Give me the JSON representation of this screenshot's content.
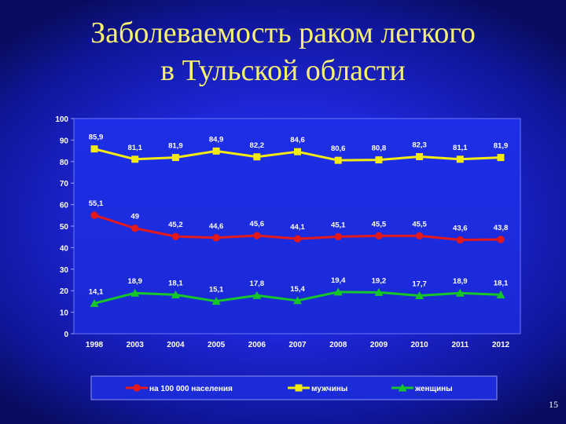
{
  "slide": {
    "title_line1": "Заболеваемость раком легкого",
    "title_line2": "в Тульской области",
    "page_number": "15"
  },
  "chart_data": {
    "type": "line",
    "categories": [
      "1998",
      "2003",
      "2004",
      "2005",
      "2006",
      "2007",
      "2008",
      "2009",
      "2010",
      "2011",
      "2012"
    ],
    "ylim": [
      0,
      100
    ],
    "yticks": [
      0,
      10,
      20,
      30,
      40,
      50,
      60,
      70,
      80,
      90,
      100
    ],
    "grid": false,
    "legend_placement": "bottom",
    "series": [
      {
        "name": "на 100 000 населения",
        "color": "#e3191c",
        "marker": "circle",
        "values": [
          55.1,
          49,
          45.2,
          44.6,
          45.6,
          44.1,
          45.1,
          45.5,
          45.5,
          43.6,
          43.8
        ],
        "labels": [
          "55,1",
          "49",
          "45,2",
          "44,6",
          "45,6",
          "44,1",
          "45,1",
          "45,5",
          "45,5",
          "43,6",
          "43,8"
        ]
      },
      {
        "name": "мужчины",
        "color": "#f2ea12",
        "marker": "square",
        "values": [
          85.9,
          81.1,
          81.9,
          84.9,
          82.2,
          84.6,
          80.6,
          80.8,
          82.3,
          81.1,
          81.9
        ],
        "labels": [
          "85,9",
          "81,1",
          "81,9",
          "84,9",
          "82,2",
          "84,6",
          "80,6",
          "80,8",
          "82,3",
          "81,1",
          "81,9"
        ]
      },
      {
        "name": "женщины",
        "color": "#16c629",
        "marker": "triangle",
        "values": [
          14.1,
          18.9,
          18.1,
          15.1,
          17.8,
          15.4,
          19.4,
          19.2,
          17.7,
          18.9,
          18.1
        ],
        "labels": [
          "14,1",
          "18,9",
          "18,1",
          "15,1",
          "17,8",
          "15,4",
          "19,4",
          "19,2",
          "17,7",
          "18,9",
          "18,1"
        ]
      }
    ]
  }
}
